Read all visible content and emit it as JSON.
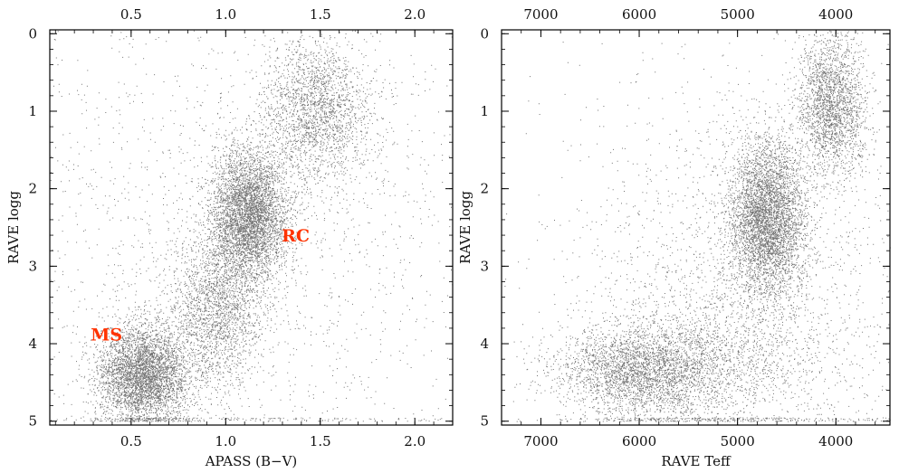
{
  "chart_data": [
    {
      "type": "scatter",
      "title": "",
      "xlabel": "APASS (B−V)",
      "ylabel": "RAVE logg",
      "xlim": [
        0.07,
        2.2
      ],
      "ylim": [
        5.05,
        -0.05
      ],
      "x_ticks": [
        {
          "value": 0.5,
          "label": "0.5"
        },
        {
          "value": 1.0,
          "label": "1.0"
        },
        {
          "value": 1.5,
          "label": "1.5"
        },
        {
          "value": 2.0,
          "label": "2.0"
        }
      ],
      "y_ticks": [
        {
          "value": 0,
          "label": "0"
        },
        {
          "value": 1,
          "label": "1"
        },
        {
          "value": 2,
          "label": "2"
        },
        {
          "value": 3,
          "label": "3"
        },
        {
          "value": 4,
          "label": "4"
        },
        {
          "value": 5,
          "label": "5"
        }
      ],
      "annotations": [
        {
          "text": "RC",
          "x": 1.37,
          "y": 2.6
        },
        {
          "text": "MS",
          "x": 0.37,
          "y": 3.88
        }
      ],
      "density_clumps": [
        {
          "x": 0.56,
          "y": 4.4,
          "sx": 0.12,
          "sy": 0.32,
          "weight": 0.28
        },
        {
          "x": 1.12,
          "y": 2.35,
          "sx": 0.1,
          "sy": 0.42,
          "weight": 0.3
        },
        {
          "x": 1.48,
          "y": 1.0,
          "sx": 0.14,
          "sy": 0.45,
          "weight": 0.14
        },
        {
          "x": 0.95,
          "y": 3.6,
          "sx": 0.12,
          "sy": 0.5,
          "weight": 0.13
        },
        {
          "x": 1.1,
          "y": 2.6,
          "sx": 0.7,
          "sy": 1.7,
          "weight": 0.15
        }
      ],
      "x_axis_position": "bottom and top",
      "grid": false
    },
    {
      "type": "scatter",
      "title": "",
      "xlabel": "RAVE Teff",
      "ylabel": "RAVE logg",
      "xlim": [
        7400,
        3450
      ],
      "ylim": [
        5.05,
        -0.05
      ],
      "x_ticks": [
        {
          "value": 7000,
          "label": "7000"
        },
        {
          "value": 6000,
          "label": "6000"
        },
        {
          "value": 5000,
          "label": "5000"
        },
        {
          "value": 4000,
          "label": "4000"
        }
      ],
      "y_ticks": [
        {
          "value": 0,
          "label": "0"
        },
        {
          "value": 1,
          "label": "1"
        },
        {
          "value": 2,
          "label": "2"
        },
        {
          "value": 3,
          "label": "3"
        },
        {
          "value": 4,
          "label": "4"
        },
        {
          "value": 5,
          "label": "5"
        }
      ],
      "annotations": [],
      "density_clumps": [
        {
          "x": 6000,
          "y": 4.35,
          "sx": 420,
          "sy": 0.28,
          "weight": 0.3
        },
        {
          "x": 4700,
          "y": 2.4,
          "sx": 190,
          "sy": 0.5,
          "weight": 0.3
        },
        {
          "x": 4050,
          "y": 0.9,
          "sx": 170,
          "sy": 0.45,
          "weight": 0.15
        },
        {
          "x": 5300,
          "y": 4.2,
          "sx": 600,
          "sy": 0.45,
          "weight": 0.1
        },
        {
          "x": 5000,
          "y": 3.3,
          "sx": 900,
          "sy": 1.4,
          "weight": 0.15
        }
      ],
      "x_axis_position": "bottom and top",
      "grid": false
    }
  ]
}
